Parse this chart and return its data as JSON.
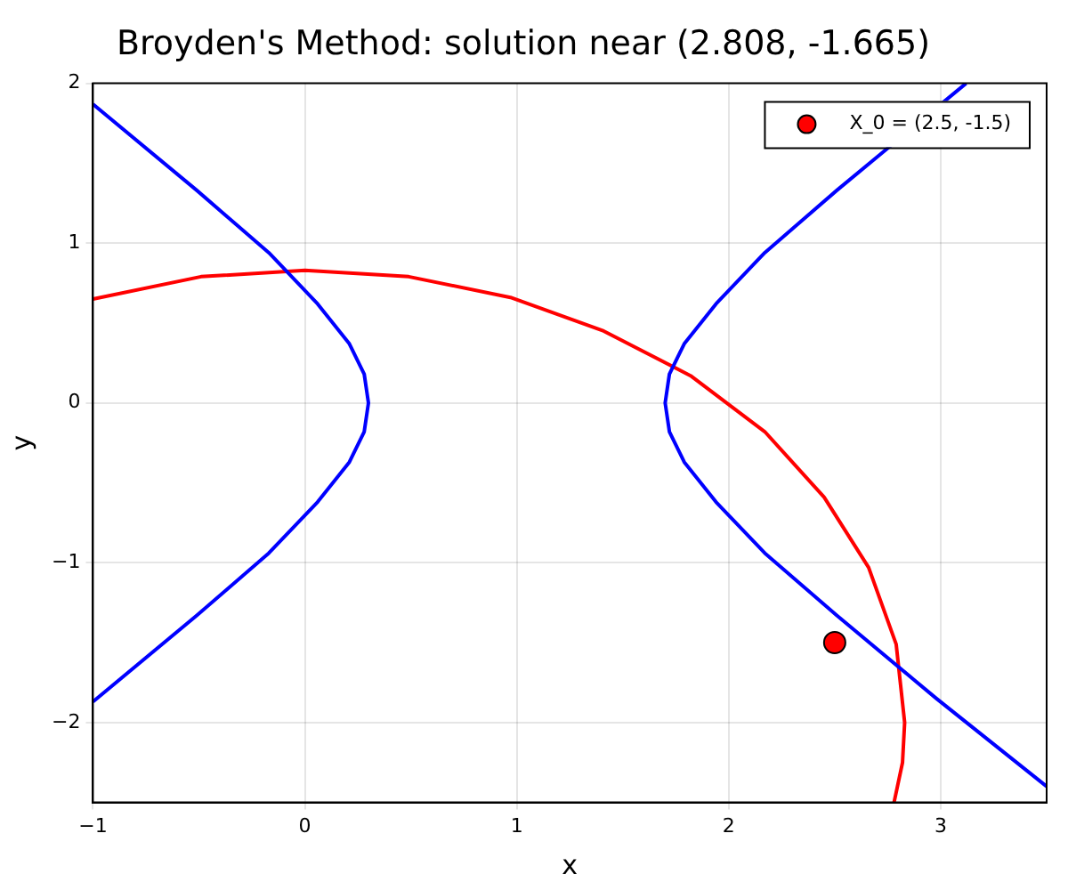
{
  "chart_data": {
    "type": "line",
    "title": "Broyden's Method: solution near (2.808, -1.665)",
    "xlabel": "x",
    "ylabel": "y",
    "xlim": [
      -1,
      3.5
    ],
    "ylim": [
      -2.5,
      2
    ],
    "xticks": [
      {
        "value": -1,
        "label": "−1"
      },
      0,
      1,
      2,
      3
    ],
    "yticks": [
      {
        "value": -2,
        "label": "−2"
      },
      {
        "value": -1,
        "label": "−1"
      },
      0,
      1,
      2
    ],
    "grid": true,
    "legend": "top right",
    "marker": "none",
    "line_style": "solid",
    "series": [
      {
        "color": "#0000ff",
        "x": [
          -1,
          -0.51,
          -0.17,
          0.06,
          0.21,
          0.28,
          0.3,
          0.28,
          0.21,
          0.06,
          -0.17,
          -0.51,
          -1
        ],
        "values": [
          1.87,
          1.33,
          0.94,
          0.62,
          0.37,
          0.18,
          0,
          -0.18,
          -0.37,
          -0.62,
          -0.94,
          -1.33,
          -1.87
        ]
      },
      {
        "color": "#0000ff",
        "x": [
          3.12,
          2.51,
          2.17,
          1.94,
          1.79,
          1.72,
          1.7,
          1.72,
          1.79,
          1.94,
          2.17,
          2.51,
          2.98,
          3.5
        ],
        "values": [
          2,
          1.33,
          0.94,
          0.62,
          0.37,
          0.18,
          0,
          -0.18,
          -0.37,
          -0.62,
          -0.94,
          -1.33,
          -1.85,
          -2.4
        ]
      },
      {
        "color": "#ff0000",
        "x": [
          -1,
          -0.49,
          0,
          0.49,
          0.97,
          1.41,
          1.82,
          2.17,
          2.45,
          2.66,
          2.79,
          2.83,
          2.82,
          2.78
        ],
        "values": [
          0.65,
          0.79,
          0.83,
          0.79,
          0.66,
          0.45,
          0.17,
          -0.18,
          -0.59,
          -1.03,
          -1.51,
          -2,
          -2.25,
          -2.5
        ]
      },
      {
        "type": "scatter",
        "name": "X_0 = (2.5, -1.5)",
        "color": "#ff0000",
        "marker": "circle",
        "x": [
          2.5
        ],
        "values": [
          -1.5
        ]
      }
    ]
  }
}
